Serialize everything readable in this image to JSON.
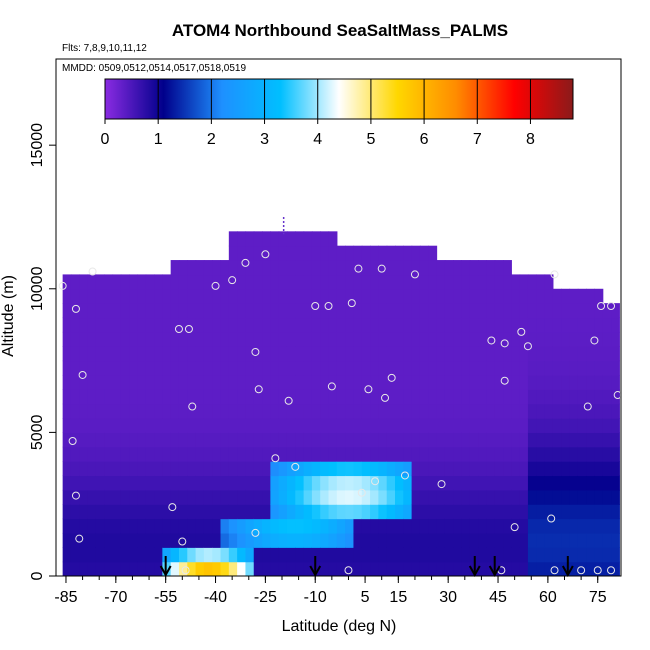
{
  "chart_data": {
    "type": "heatmap",
    "title": "ATOM4 Northbound SeaSaltMass_PALMS",
    "subtitle_flights": "Flts: 7,8,9,10,11,12",
    "subtitle_dates": "MMDD: 0509,0512,0514,0517,0518,0519",
    "xlabel": "Latitude (deg N)",
    "ylabel": "Altitude (m)",
    "xlim": [
      -88,
      82
    ],
    "ylim": [
      0,
      18000
    ],
    "xticks": [
      -85,
      -70,
      -55,
      -40,
      -25,
      -10,
      5,
      15,
      30,
      45,
      60,
      75
    ],
    "yticks": [
      0,
      5000,
      10000,
      15000
    ],
    "colorbar": {
      "min": 0,
      "max": 8.8,
      "ticks": [
        0,
        1,
        2,
        3,
        4,
        5,
        6,
        7,
        8
      ],
      "colors": [
        "#8a2be2",
        "#00008b",
        "#1e90ff",
        "#00bfff",
        "#ffffff",
        "#ffd700",
        "#ff8c00",
        "#ff0000",
        "#8b1a1a"
      ]
    },
    "profile_top": [
      [
        -86,
        10500
      ],
      [
        -53,
        10500
      ],
      [
        -53,
        10900
      ],
      [
        -37,
        10900
      ],
      [
        -37,
        11900
      ],
      [
        -3,
        11900
      ],
      [
        -3,
        11500
      ],
      [
        27,
        11500
      ],
      [
        27,
        10900
      ],
      [
        50,
        10900
      ],
      [
        50,
        10500
      ],
      [
        61,
        10500
      ],
      [
        61,
        10000
      ],
      [
        76,
        10000
      ],
      [
        76,
        9500
      ],
      [
        82,
        9500
      ]
    ],
    "plume_regions": [
      {
        "xmin": -56,
        "xmax": -29,
        "ymin": 0,
        "ymax": 1000,
        "peak_x": -42,
        "peak_y": 200,
        "peak": 5.8
      },
      {
        "xmin": -38,
        "xmax": 2,
        "ymin": 1000,
        "ymax": 2000,
        "peak_x": -16,
        "peak_y": 1600,
        "peak": 3.4
      },
      {
        "xmin": -24,
        "xmax": 20,
        "ymin": 2000,
        "ymax": 3800,
        "peak_x": 0,
        "peak_y": 2900,
        "peak": 4.3
      }
    ],
    "sample_points": [
      [
        -86,
        10100
      ],
      [
        -82,
        9300
      ],
      [
        -77,
        10600
      ],
      [
        -80,
        7000
      ],
      [
        -83,
        4700
      ],
      [
        -82,
        2800
      ],
      [
        -81,
        1300
      ],
      [
        -53,
        2400
      ],
      [
        -50,
        1200
      ],
      [
        -51,
        8600
      ],
      [
        -48,
        8600
      ],
      [
        -47,
        5900
      ],
      [
        -40,
        10100
      ],
      [
        -35,
        10300
      ],
      [
        -31,
        10900
      ],
      [
        -28,
        1500
      ],
      [
        -28,
        7800
      ],
      [
        -27,
        6500
      ],
      [
        -25,
        11200
      ],
      [
        -22,
        4100
      ],
      [
        -18,
        6100
      ],
      [
        -16,
        3800
      ],
      [
        -10,
        9400
      ],
      [
        -6,
        9400
      ],
      [
        -5,
        6600
      ],
      [
        0,
        200
      ],
      [
        1,
        9500
      ],
      [
        3,
        10700
      ],
      [
        4,
        2900
      ],
      [
        6,
        6500
      ],
      [
        8,
        3300
      ],
      [
        10,
        10700
      ],
      [
        11,
        6200
      ],
      [
        13,
        6900
      ],
      [
        17,
        3500
      ],
      [
        20,
        10500
      ],
      [
        28,
        3200
      ],
      [
        43,
        8200
      ],
      [
        47,
        8100
      ],
      [
        47,
        6800
      ],
      [
        50,
        1700
      ],
      [
        52,
        8500
      ],
      [
        54,
        8000
      ],
      [
        61,
        2000
      ],
      [
        62,
        10500
      ],
      [
        62,
        200
      ],
      [
        70,
        200
      ],
      [
        72,
        5900
      ],
      [
        74,
        8200
      ],
      [
        76,
        9400
      ],
      [
        79,
        9400
      ],
      [
        79,
        200
      ],
      [
        81,
        6300
      ],
      [
        75,
        200
      ],
      [
        46,
        200
      ],
      [
        -49,
        200
      ]
    ],
    "arrows_lat": [
      -55,
      -10,
      38,
      44,
      66
    ]
  }
}
